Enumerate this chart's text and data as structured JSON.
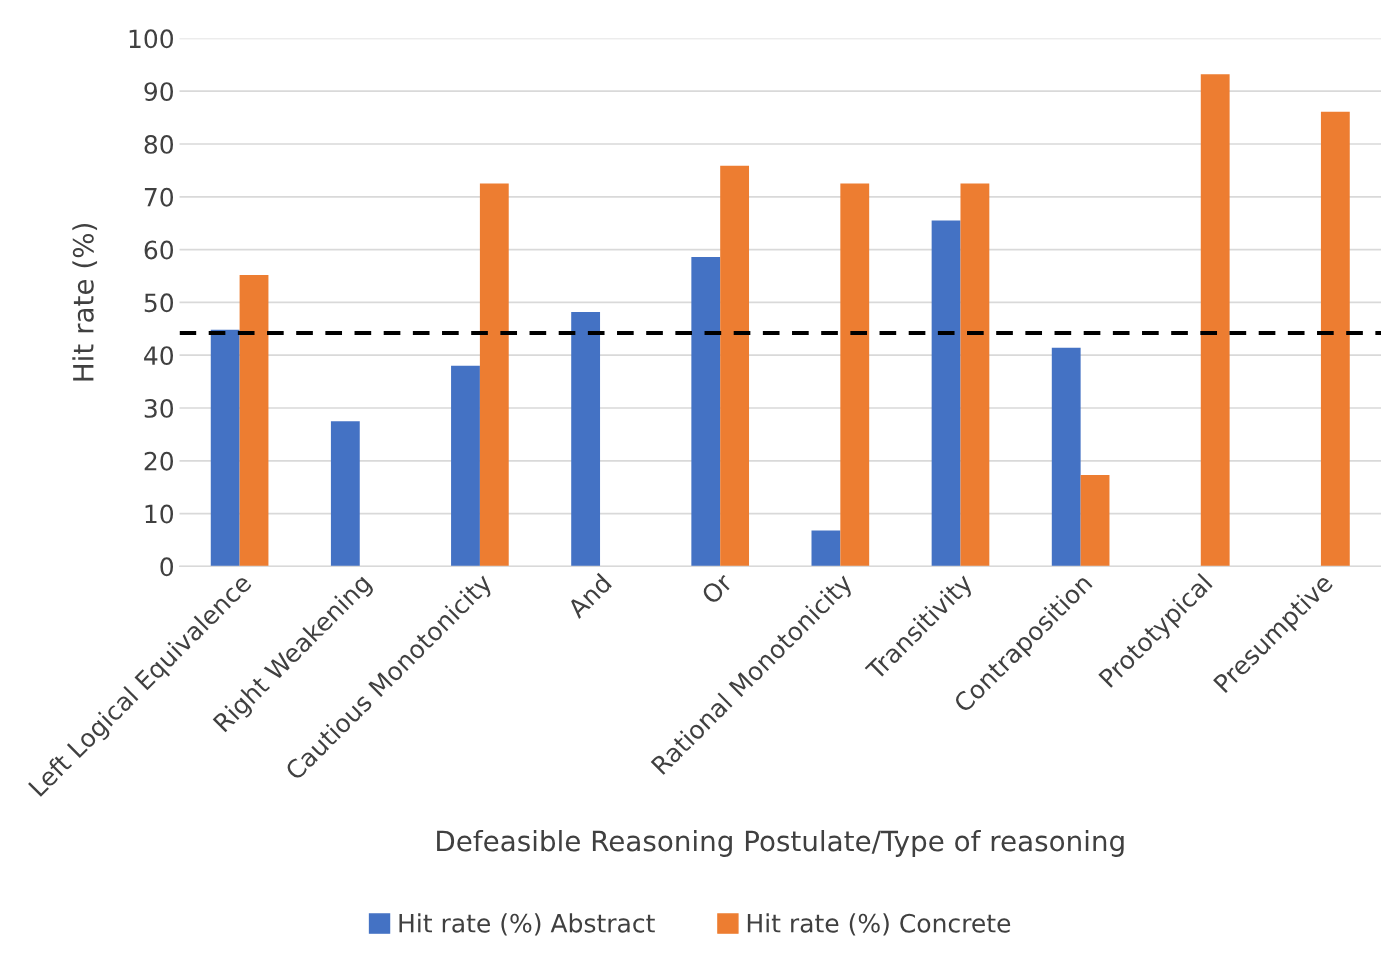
{
  "chart_data": {
    "type": "bar",
    "xlabel": "Defeasible Reasoning Postulate/Type of reasoning",
    "ylabel": "Hit rate (%)",
    "categories": [
      "Left Logical Equivalence",
      "Right Weakening",
      "Cautious Monotonicity",
      "And",
      "Or",
      "Rational Monotonicity",
      "Transitivity",
      "Contraposition",
      "Prototypical",
      "Presumptive"
    ],
    "series": [
      {
        "name": "Hit rate (%) Abstract",
        "color": "#4472c4",
        "values": [
          44.8,
          27.5,
          38,
          48.2,
          58.6,
          6.8,
          65.5,
          41.4,
          null,
          null
        ]
      },
      {
        "name": "Hit rate (%) Concrete",
        "color": "#ed7d31",
        "values": [
          55.2,
          null,
          72.5,
          null,
          75.9,
          72.5,
          72.5,
          17.3,
          93.2,
          86.1
        ]
      }
    ],
    "ylim": [
      0,
      100
    ],
    "yticks": [
      0,
      10,
      20,
      30,
      40,
      50,
      60,
      70,
      80,
      90,
      100
    ],
    "grid": "y",
    "legend": "bottom",
    "ref_lines": [
      {
        "axis": "y",
        "value": 44.2,
        "color": "#000000",
        "line_style": "dashed"
      }
    ]
  }
}
